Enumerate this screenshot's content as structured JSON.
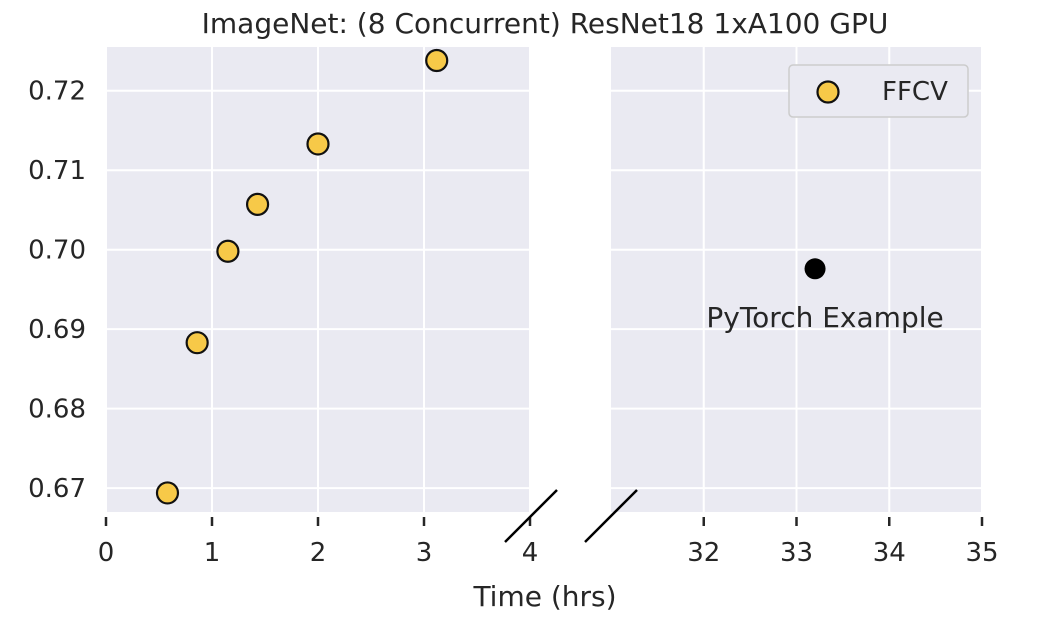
{
  "chart_data": {
    "type": "scatter",
    "title": "ImageNet: (8 Concurrent) ResNet18 1xA100 GPU",
    "xlabel": "Time (hrs)",
    "ylabel": "",
    "broken_x_axis": true,
    "panels": [
      {
        "xlim": [
          0,
          4
        ],
        "xticks": [
          "0",
          "1",
          "2",
          "3",
          "4"
        ]
      },
      {
        "xlim": [
          31,
          35
        ],
        "xticks": [
          "32",
          "33",
          "34",
          "35"
        ]
      }
    ],
    "ylim": [
      0.667,
      0.7255
    ],
    "yticks": [
      "0.67",
      "0.68",
      "0.69",
      "0.70",
      "0.71",
      "0.72"
    ],
    "grid": true,
    "background": "#eaeaf2",
    "legend": {
      "placement": "top-right",
      "entries": [
        "FFCV"
      ]
    },
    "series": [
      {
        "name": "FFCV",
        "color": "#f7c948",
        "edge_color": "#111111",
        "points": [
          {
            "x": 0.58,
            "y": 0.6694
          },
          {
            "x": 0.86,
            "y": 0.6883
          },
          {
            "x": 1.15,
            "y": 0.6998
          },
          {
            "x": 1.43,
            "y": 0.7057
          },
          {
            "x": 2.0,
            "y": 0.7133
          },
          {
            "x": 3.12,
            "y": 0.7238
          }
        ]
      },
      {
        "color": "#000000",
        "label": "PyTorch Example",
        "points": [
          {
            "x": 33.2,
            "y": 0.6976
          }
        ]
      }
    ]
  }
}
